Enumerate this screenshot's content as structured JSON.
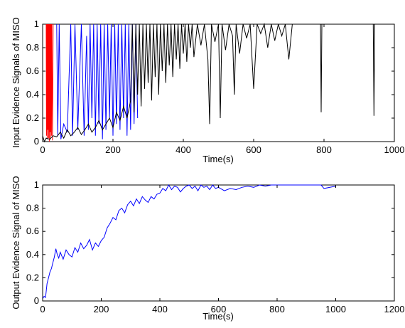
{
  "chart_data": [
    {
      "type": "line",
      "xlabel": "Time(s)",
      "ylabel": "Input Evidence Signals of MISO",
      "xlim": [
        0,
        1000
      ],
      "ylim": [
        0,
        1
      ],
      "xticks": [
        "0",
        "200",
        "400",
        "600",
        "800",
        "1000"
      ],
      "yticks": [
        "0",
        "0.2",
        "0.4",
        "0.6",
        "0.8",
        "1"
      ],
      "grid": false,
      "series": [
        {
          "color": "#ff0000",
          "x": [
            10,
            11,
            12,
            13,
            14,
            15,
            16,
            17,
            18,
            19,
            20,
            21,
            22,
            23,
            24,
            25,
            26,
            28,
            30
          ],
          "y": [
            1,
            0.05,
            1,
            0.02,
            1,
            0.1,
            1,
            0.03,
            1,
            0.0,
            1,
            0.08,
            1,
            0.02,
            1,
            0.05,
            1,
            0.01,
            1
          ]
        },
        {
          "color": "#0000ff",
          "x": [
            40,
            43,
            47,
            52,
            60,
            70,
            80,
            85,
            92,
            100,
            110,
            118,
            125,
            130,
            135,
            140,
            145,
            150,
            155,
            160,
            165,
            170,
            175,
            180,
            185,
            190,
            195,
            200,
            205,
            210,
            215,
            220,
            225,
            230,
            235,
            240,
            245,
            250,
            255,
            260,
            265,
            270
          ],
          "y": [
            1,
            0.05,
            1,
            0.02,
            0.15,
            0.08,
            1,
            0.05,
            1,
            0.1,
            1,
            0.05,
            0.9,
            0.1,
            1,
            0.2,
            1,
            0.05,
            1,
            0.15,
            1,
            0.02,
            1,
            0.1,
            1,
            0.2,
            1,
            0.05,
            1,
            0.15,
            1,
            0.1,
            1,
            0.2,
            1,
            0.05,
            1,
            0.1,
            1,
            0.15,
            1,
            0.2
          ]
        },
        {
          "color": "#000000",
          "x": [
            0,
            5,
            10,
            20,
            30,
            40,
            50,
            60,
            70,
            80,
            90,
            100,
            110,
            120,
            130,
            140,
            150,
            160,
            170,
            180,
            190,
            200,
            210,
            220,
            230,
            240,
            250,
            255,
            260,
            265,
            270,
            275,
            280,
            285,
            290,
            295,
            300,
            305,
            310,
            315,
            320,
            325,
            330,
            335,
            340,
            345,
            350,
            355,
            360,
            365,
            370,
            375,
            380,
            385,
            390,
            395,
            400,
            405,
            410,
            415,
            420,
            425,
            430,
            440,
            450,
            460,
            470,
            475,
            480,
            490,
            500,
            505,
            510,
            520,
            530,
            540,
            545,
            550,
            560,
            570,
            580,
            590,
            600,
            610,
            620,
            630,
            640,
            650,
            660,
            670,
            680,
            690,
            700,
            710,
            720,
            790,
            792,
            794,
            940,
            942,
            944,
            1000
          ],
          "y": [
            0.05,
            0.0,
            0.03,
            0.02,
            0.05,
            0.04,
            0.08,
            0.03,
            0.1,
            0.05,
            0.08,
            0.12,
            0.06,
            0.1,
            0.15,
            0.08,
            0.12,
            0.18,
            0.1,
            0.15,
            0.2,
            0.12,
            0.25,
            0.18,
            0.3,
            0.2,
            0.35,
            1,
            0.25,
            1,
            0.4,
            1,
            0.3,
            1,
            0.45,
            1,
            0.5,
            1,
            0.35,
            1,
            0.55,
            1,
            0.4,
            1,
            0.6,
            1,
            0.5,
            1,
            0.65,
            1,
            0.55,
            1,
            0.7,
            1,
            0.62,
            1,
            0.75,
            1,
            0.68,
            1,
            0.8,
            1,
            0.72,
            1,
            0.82,
            1,
            0.7,
            0.15,
            1,
            0.85,
            1,
            0.2,
            1,
            0.78,
            1,
            0.9,
            0.4,
            1,
            0.75,
            1,
            0.88,
            1,
            0.45,
            1,
            0.92,
            1,
            0.8,
            1,
            0.86,
            1,
            0.9,
            1,
            0.7,
            1,
            1,
            1,
            0.25,
            1,
            1,
            0.22,
            1,
            1
          ]
        }
      ]
    },
    {
      "type": "line",
      "xlabel": "Time(s)",
      "ylabel": "Output Evidence Signal of MISO",
      "xlim": [
        0,
        1200
      ],
      "ylim": [
        0,
        1
      ],
      "xticks": [
        "0",
        "200",
        "400",
        "600",
        "800",
        "1000",
        "1200"
      ],
      "yticks": [
        "0",
        "0.2",
        "0.4",
        "0.6",
        "0.8",
        "1"
      ],
      "grid": false,
      "series": [
        {
          "color": "#0000ff",
          "x": [
            0,
            5,
            10,
            15,
            20,
            25,
            30,
            35,
            40,
            45,
            50,
            55,
            60,
            70,
            80,
            90,
            100,
            110,
            120,
            130,
            140,
            150,
            160,
            170,
            180,
            190,
            200,
            210,
            220,
            230,
            240,
            250,
            260,
            270,
            280,
            290,
            300,
            310,
            320,
            330,
            340,
            350,
            360,
            370,
            380,
            390,
            400,
            410,
            420,
            430,
            440,
            450,
            460,
            470,
            480,
            490,
            500,
            510,
            520,
            530,
            540,
            550,
            560,
            570,
            580,
            590,
            600,
            620,
            640,
            660,
            680,
            700,
            720,
            740,
            760,
            780,
            800,
            850,
            900,
            950,
            960,
            1000
          ],
          "y": [
            0.02,
            0.04,
            0.03,
            0.15,
            0.2,
            0.25,
            0.28,
            0.33,
            0.38,
            0.45,
            0.4,
            0.37,
            0.42,
            0.36,
            0.44,
            0.4,
            0.38,
            0.46,
            0.42,
            0.5,
            0.45,
            0.48,
            0.53,
            0.44,
            0.5,
            0.47,
            0.52,
            0.55,
            0.63,
            0.67,
            0.72,
            0.7,
            0.78,
            0.8,
            0.76,
            0.83,
            0.86,
            0.82,
            0.88,
            0.84,
            0.9,
            0.87,
            0.85,
            0.9,
            0.88,
            0.92,
            0.93,
            0.97,
            0.95,
            1.0,
            0.96,
            0.99,
            0.98,
            0.94,
            0.97,
            0.99,
            1.0,
            0.97,
            0.99,
            0.95,
            1.0,
            0.98,
            0.99,
            0.96,
            1.0,
            0.97,
            0.98,
            0.95,
            0.97,
            0.96,
            0.98,
            0.99,
            0.98,
            1.0,
            0.99,
            1.0,
            1.0,
            1.0,
            1.0,
            1.0,
            0.97,
            0.99
          ]
        }
      ]
    }
  ]
}
